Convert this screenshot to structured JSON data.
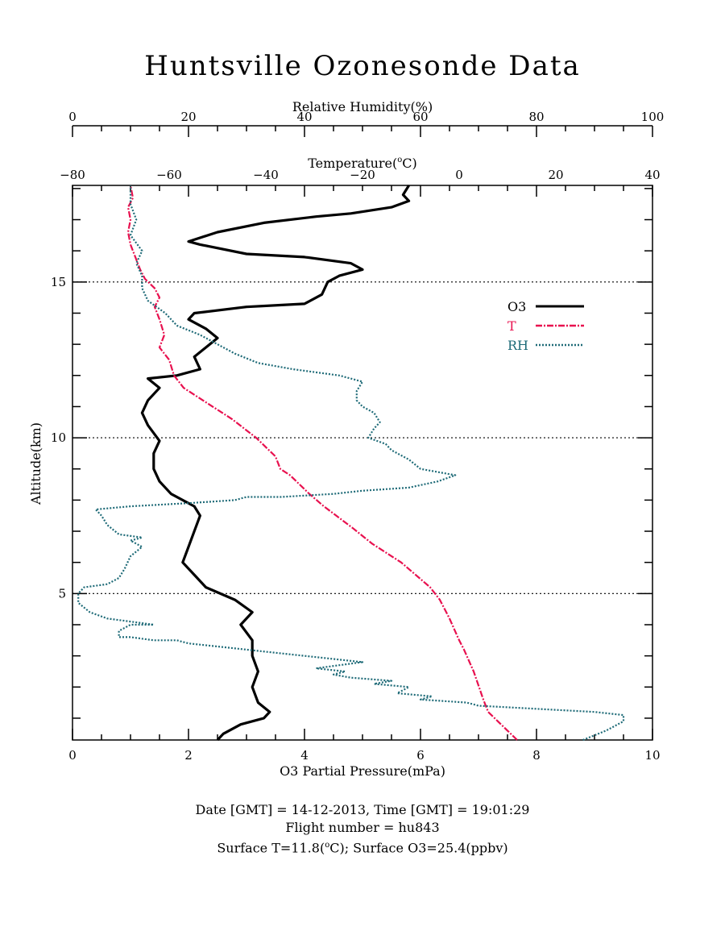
{
  "title": "Huntsville Ozonesonde Data",
  "chart_data": {
    "type": "line",
    "title": "Huntsville Ozonesonde Data",
    "axes": {
      "ozone": {
        "label": "O3 Partial Pressure(mPa)",
        "range": [
          0,
          10
        ],
        "ticks": [
          "0",
          "2",
          "4",
          "6",
          "8",
          "10"
        ],
        "position": "bottom"
      },
      "temperature": {
        "label_main": "Temperature(",
        "label_unit": "C)",
        "label_sup": "o",
        "range": [
          -80,
          40
        ],
        "ticks": [
          "−80",
          "−60",
          "−40",
          "−20",
          "0",
          "20",
          "40"
        ],
        "position": "top"
      },
      "humidity": {
        "label": "Relative Humidity(%)",
        "range": [
          0,
          100
        ],
        "ticks": [
          "0",
          "20",
          "40",
          "60",
          "80",
          "100"
        ],
        "position": "top-outer"
      },
      "altitude": {
        "label": "Altitude(km)",
        "range": [
          0.3,
          18.1
        ],
        "ticks": [
          "5",
          "10",
          "15"
        ],
        "position": "left"
      }
    },
    "grid": "dotted horizontal lines at 5, 10, 15 km",
    "legend_placement": "right, mid-upper",
    "series": [
      {
        "name": "O3",
        "color": "#000000",
        "style": "solid",
        "axis": "ozone",
        "points": [
          [
            2.5,
            0.3
          ],
          [
            2.6,
            0.5
          ],
          [
            2.9,
            0.8
          ],
          [
            3.3,
            1.0
          ],
          [
            3.4,
            1.2
          ],
          [
            3.2,
            1.5
          ],
          [
            3.1,
            2.0
          ],
          [
            3.2,
            2.5
          ],
          [
            3.1,
            3.0
          ],
          [
            3.1,
            3.5
          ],
          [
            2.9,
            4.0
          ],
          [
            3.1,
            4.4
          ],
          [
            2.8,
            4.8
          ],
          [
            2.3,
            5.2
          ],
          [
            2.1,
            5.6
          ],
          [
            1.9,
            6.0
          ],
          [
            2.0,
            6.5
          ],
          [
            2.1,
            7.0
          ],
          [
            2.2,
            7.5
          ],
          [
            2.1,
            7.8
          ],
          [
            1.7,
            8.2
          ],
          [
            1.5,
            8.6
          ],
          [
            1.4,
            9.0
          ],
          [
            1.4,
            9.5
          ],
          [
            1.5,
            9.9
          ],
          [
            1.3,
            10.4
          ],
          [
            1.2,
            10.8
          ],
          [
            1.3,
            11.2
          ],
          [
            1.5,
            11.6
          ],
          [
            1.3,
            11.9
          ],
          [
            1.8,
            12.0
          ],
          [
            2.2,
            12.2
          ],
          [
            2.1,
            12.6
          ],
          [
            2.3,
            12.9
          ],
          [
            2.5,
            13.2
          ],
          [
            2.3,
            13.5
          ],
          [
            2.0,
            13.8
          ],
          [
            2.1,
            14.0
          ],
          [
            3.0,
            14.2
          ],
          [
            4.0,
            14.3
          ],
          [
            4.3,
            14.6
          ],
          [
            4.4,
            15.0
          ],
          [
            4.6,
            15.2
          ],
          [
            5.0,
            15.4
          ],
          [
            4.8,
            15.6
          ],
          [
            4.0,
            15.8
          ],
          [
            3.0,
            15.9
          ],
          [
            2.2,
            16.2
          ],
          [
            2.0,
            16.3
          ],
          [
            2.5,
            16.6
          ],
          [
            3.3,
            16.9
          ],
          [
            4.2,
            17.1
          ],
          [
            4.8,
            17.2
          ],
          [
            5.5,
            17.4
          ],
          [
            5.8,
            17.6
          ],
          [
            5.7,
            17.8
          ],
          [
            5.8,
            18.1
          ]
        ]
      },
      {
        "name": "T",
        "color": "#e8114f",
        "style": "dashdot",
        "axis": "temperature",
        "points": [
          [
            12.0,
            0.3
          ],
          [
            10.0,
            0.6
          ],
          [
            8.0,
            0.9
          ],
          [
            6.0,
            1.2
          ],
          [
            5.0,
            1.6
          ],
          [
            3.0,
            2.5
          ],
          [
            1.0,
            3.2
          ],
          [
            0.0,
            3.5
          ],
          [
            -2.0,
            4.2
          ],
          [
            -4.0,
            4.8
          ],
          [
            -6.0,
            5.2
          ],
          [
            -12.0,
            6.0
          ],
          [
            -18.0,
            6.6
          ],
          [
            -22.0,
            7.1
          ],
          [
            -28.0,
            7.8
          ],
          [
            -31.0,
            8.2
          ],
          [
            -35.0,
            8.8
          ],
          [
            -37.0,
            9.0
          ],
          [
            -38.0,
            9.4
          ],
          [
            -42.0,
            10.0
          ],
          [
            -47.0,
            10.6
          ],
          [
            -52.0,
            11.1
          ],
          [
            -57.0,
            11.6
          ],
          [
            -58.0,
            11.8
          ],
          [
            -59.0,
            12.0
          ],
          [
            -60.0,
            12.5
          ],
          [
            -62.0,
            12.9
          ],
          [
            -61.0,
            13.3
          ],
          [
            -62.0,
            13.8
          ],
          [
            -63.0,
            14.2
          ],
          [
            -62.0,
            14.5
          ],
          [
            -63.0,
            14.8
          ],
          [
            -65.0,
            15.1
          ],
          [
            -66.0,
            15.4
          ],
          [
            -67.0,
            15.8
          ],
          [
            -68.0,
            16.2
          ],
          [
            -68.5,
            16.6
          ],
          [
            -68.0,
            17.0
          ],
          [
            -68.5,
            17.4
          ],
          [
            -67.5,
            17.7
          ],
          [
            -68.0,
            18.1
          ]
        ]
      },
      {
        "name": "RH",
        "color": "#1f6b78",
        "style": "dotted",
        "axis": "humidity",
        "points": [
          [
            88,
            0.3
          ],
          [
            92,
            0.6
          ],
          [
            95,
            0.9
          ],
          [
            95,
            1.1
          ],
          [
            90,
            1.2
          ],
          [
            70,
            1.4
          ],
          [
            68,
            1.5
          ],
          [
            60,
            1.6
          ],
          [
            62,
            1.7
          ],
          [
            56,
            1.8
          ],
          [
            58,
            2.0
          ],
          [
            52,
            2.1
          ],
          [
            55,
            2.2
          ],
          [
            48,
            2.3
          ],
          [
            45,
            2.4
          ],
          [
            47,
            2.5
          ],
          [
            42,
            2.6
          ],
          [
            46,
            2.7
          ],
          [
            50,
            2.8
          ],
          [
            45,
            2.9
          ],
          [
            35,
            3.1
          ],
          [
            30,
            3.2
          ],
          [
            25,
            3.3
          ],
          [
            20,
            3.4
          ],
          [
            18,
            3.5
          ],
          [
            14,
            3.5
          ],
          [
            10,
            3.6
          ],
          [
            8,
            3.6
          ],
          [
            8,
            3.8
          ],
          [
            10,
            4.0
          ],
          [
            14,
            4.0
          ],
          [
            10,
            4.1
          ],
          [
            6,
            4.2
          ],
          [
            3,
            4.4
          ],
          [
            1,
            4.7
          ],
          [
            1,
            5.0
          ],
          [
            2,
            5.2
          ],
          [
            6,
            5.3
          ],
          [
            8,
            5.5
          ],
          [
            9,
            5.8
          ],
          [
            10,
            6.2
          ],
          [
            12,
            6.5
          ],
          [
            10,
            6.7
          ],
          [
            12,
            6.8
          ],
          [
            8,
            6.9
          ],
          [
            6,
            7.2
          ],
          [
            5,
            7.5
          ],
          [
            4,
            7.7
          ],
          [
            10,
            7.8
          ],
          [
            20,
            7.9
          ],
          [
            28,
            8.0
          ],
          [
            30,
            8.1
          ],
          [
            36,
            8.1
          ],
          [
            45,
            8.2
          ],
          [
            50,
            8.3
          ],
          [
            58,
            8.4
          ],
          [
            63,
            8.6
          ],
          [
            66,
            8.8
          ],
          [
            63,
            8.9
          ],
          [
            60,
            9.0
          ],
          [
            58,
            9.3
          ],
          [
            55,
            9.6
          ],
          [
            54,
            9.8
          ],
          [
            51,
            10.0
          ],
          [
            52,
            10.3
          ],
          [
            53,
            10.5
          ],
          [
            52,
            10.8
          ],
          [
            50,
            11.0
          ],
          [
            49,
            11.2
          ],
          [
            49,
            11.5
          ],
          [
            50,
            11.8
          ],
          [
            46,
            12.0
          ],
          [
            38,
            12.2
          ],
          [
            32,
            12.4
          ],
          [
            28,
            12.7
          ],
          [
            25,
            13.0
          ],
          [
            22,
            13.3
          ],
          [
            18,
            13.6
          ],
          [
            16,
            14.0
          ],
          [
            13,
            14.4
          ],
          [
            12,
            14.8
          ],
          [
            12,
            15.2
          ],
          [
            11,
            15.6
          ],
          [
            12,
            16.0
          ],
          [
            10,
            16.5
          ],
          [
            11,
            17.0
          ],
          [
            10,
            17.5
          ],
          [
            10,
            18.1
          ]
        ]
      }
    ]
  },
  "footer": {
    "line1": "Date [GMT] = 14-12-2013,  Time [GMT] = 19:01:29",
    "line2": "Flight number = hu843",
    "line3_a": "Surface T=11.8(",
    "line3_sup": "o",
    "line3_b": "C); Surface O3=25.4(ppbv)"
  }
}
